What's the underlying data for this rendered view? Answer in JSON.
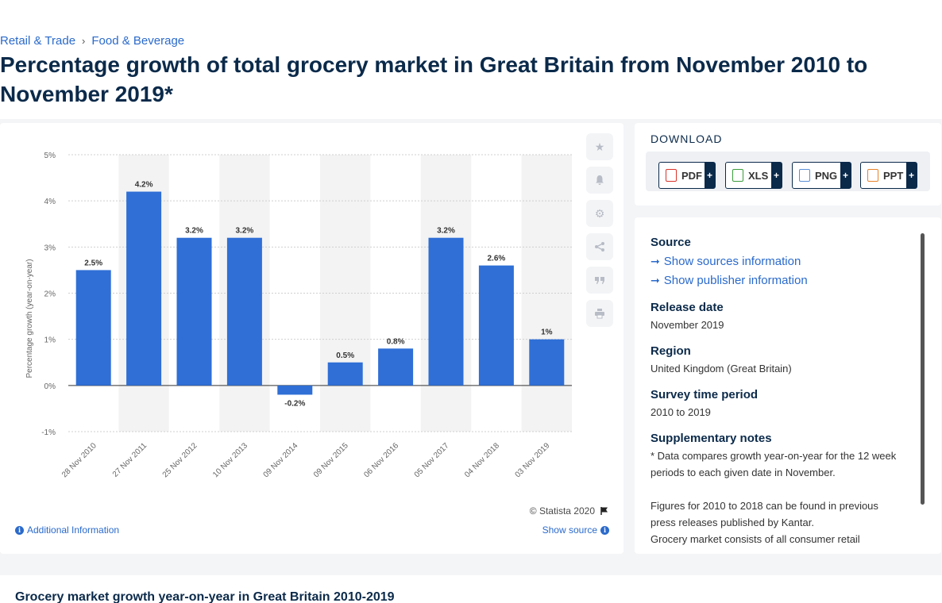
{
  "breadcrumb": {
    "item1": "Retail & Trade",
    "sep": "›",
    "item2": "Food & Beverage"
  },
  "page_title": "Percentage growth of total grocery market in Great Britain from November 2010 to November 2019*",
  "chart_card": {
    "copyright": "© Statista 2020",
    "additional_info": "Additional Information",
    "show_source": "Show source",
    "side_icons": [
      "star-icon",
      "bell-icon",
      "gear-icon",
      "share-icon",
      "quote-icon",
      "print-icon"
    ]
  },
  "download": {
    "title": "DOWNLOAD",
    "buttons": [
      {
        "label": "PDF",
        "color": "#d9342b"
      },
      {
        "label": "XLS",
        "color": "#3b9b3b"
      },
      {
        "label": "PNG",
        "color": "#5a8fd6"
      },
      {
        "label": "PPT",
        "color": "#e8832a"
      }
    ],
    "plus": "+"
  },
  "source_panel": {
    "source_heading": "Source",
    "show_sources": "Show sources information",
    "show_publisher": "Show publisher information",
    "release_heading": "Release date",
    "release_value": "November 2019",
    "region_heading": "Region",
    "region_value": "United Kingdom (Great Britain)",
    "survey_heading": "Survey time period",
    "survey_value": "2010 to 2019",
    "notes_heading": "Supplementary notes",
    "notes_p1": "* Data compares growth year-on-year for the 12 week periods to each given date in November.",
    "notes_p2": "Figures for 2010 to 2018 can be found in previous press releases published by Kantar.",
    "notes_p3": "Grocery market consists of all consumer retail"
  },
  "bottom": {
    "title": "Grocery market growth year-on-year in Great Britain 2010-2019"
  },
  "chart_data": {
    "type": "bar",
    "categories": [
      "28 Nov 2010",
      "27 Nov 2011",
      "25 Nov 2012",
      "10 Nov 2013",
      "09 Nov 2014",
      "09 Nov 2015",
      "06 Nov 2016",
      "05 Nov 2017",
      "04 Nov 2018",
      "03 Nov 2019"
    ],
    "values": [
      2.5,
      4.2,
      3.2,
      3.2,
      -0.2,
      0.5,
      0.8,
      3.2,
      2.6,
      1.0
    ],
    "value_labels": [
      "2.5%",
      "4.2%",
      "3.2%",
      "3.2%",
      "-0.2%",
      "0.5%",
      "0.8%",
      "3.2%",
      "2.6%",
      "1%"
    ],
    "ylabel": "Percentage growth (year-on-year)",
    "xlabel": "",
    "ylim": [
      -1,
      5
    ],
    "yticks": [
      -1,
      0,
      1,
      2,
      3,
      4,
      5
    ],
    "ytick_labels": [
      "-1%",
      "0%",
      "1%",
      "2%",
      "3%",
      "4%",
      "5%"
    ],
    "bar_color": "#2f6fd6",
    "band_color": "#f3f3f3",
    "grid": true,
    "legend": "none"
  }
}
